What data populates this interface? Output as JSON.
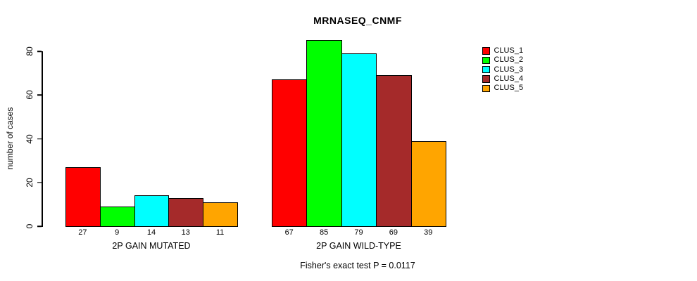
{
  "title": "MRNASEQ_CNMF",
  "footer": "Fisher's exact test P = 0.0117",
  "chart_data": {
    "type": "bar",
    "title": "MRNASEQ_CNMF",
    "xlabel": "",
    "ylabel": "number of cases",
    "ylim": [
      0,
      80
    ],
    "yticks": [
      0,
      20,
      40,
      60,
      80
    ],
    "grid": false,
    "legend_position": "right-outside",
    "categories": [
      "2P GAIN MUTATED",
      "2P GAIN WILD-TYPE"
    ],
    "series": [
      {
        "name": "CLUS_1",
        "color": "#ff0000",
        "values": [
          27,
          67
        ]
      },
      {
        "name": "CLUS_2",
        "color": "#00ff00",
        "values": [
          9,
          85
        ]
      },
      {
        "name": "CLUS_3",
        "color": "#00ffff",
        "values": [
          14,
          79
        ]
      },
      {
        "name": "CLUS_4",
        "color": "#a52a2a",
        "values": [
          13,
          69
        ]
      },
      {
        "name": "CLUS_5",
        "color": "#ffa500",
        "values": [
          11,
          39
        ]
      }
    ],
    "bar_value_labels": true,
    "annotation": "Fisher's exact test P = 0.0117"
  }
}
